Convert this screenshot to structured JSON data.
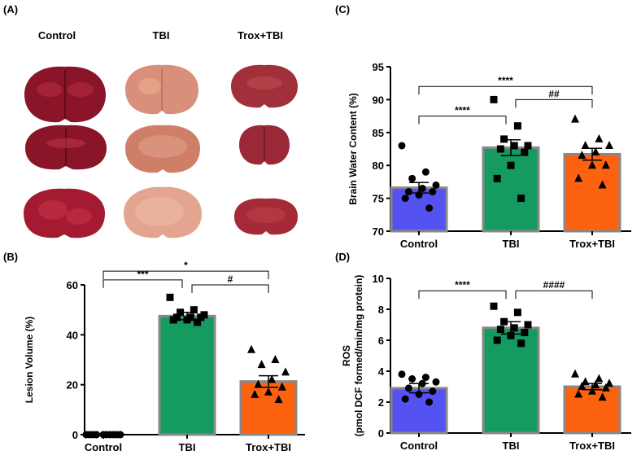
{
  "panels": {
    "a": {
      "label": "(A)",
      "group_labels": [
        "Control",
        "TBI",
        "Trox+TBI"
      ]
    },
    "b": {
      "label": "(B)"
    },
    "c": {
      "label": "(C)"
    },
    "d": {
      "label": "(D)"
    }
  },
  "colors": {
    "control": "#5552f2",
    "tbi": "#159a5f",
    "trox": "#fd6210",
    "bar_edge": "#888888",
    "brain_control": "#8a1428",
    "brain_tbi": "#d9907a",
    "brain_trox": "#a2303a"
  },
  "chart_data": [
    {
      "panel": "B",
      "type": "bar",
      "title": "",
      "xlabel": "",
      "ylabel": "Lesion Volume (%)",
      "categories": [
        "Control",
        "TBI",
        "Trox+TBI"
      ],
      "values": [
        0,
        47.5,
        21.3
      ],
      "sem": [
        0,
        1.5,
        2.3
      ],
      "ylim": [
        0,
        60
      ],
      "yticks": [
        "0",
        "20",
        "40",
        "60"
      ],
      "points": [
        [
          0,
          0,
          0,
          0,
          0,
          0,
          0,
          0,
          0,
          0
        ],
        [
          55,
          50,
          49,
          48,
          47,
          47,
          47,
          46,
          46,
          45
        ],
        [
          34,
          30,
          28,
          25,
          22,
          20,
          19,
          17,
          16,
          14
        ]
      ],
      "brackets": [
        {
          "from": 0,
          "to": 1,
          "label": "***",
          "y": 62
        },
        {
          "from": 0,
          "to": 2,
          "label": "*",
          "y": 65.5
        },
        {
          "from": 1,
          "to": 2,
          "label": "#",
          "y": 60
        }
      ]
    },
    {
      "panel": "C",
      "type": "bar",
      "title": "",
      "xlabel": "",
      "ylabel": "Brain Water Content (%)",
      "categories": [
        "Control",
        "TBI",
        "Trox+TBI"
      ],
      "values": [
        76.6,
        82.7,
        81.7
      ],
      "sem": [
        0.8,
        1.2,
        0.9
      ],
      "ylim": [
        70,
        95
      ],
      "yticks": [
        "70",
        "75",
        "80",
        "85",
        "90",
        "95"
      ],
      "points": [
        [
          83,
          79,
          78,
          77,
          76.5,
          76,
          76,
          75.5,
          75,
          73.5
        ],
        [
          90,
          86,
          84,
          83,
          83,
          82.5,
          82,
          80,
          78,
          75
        ],
        [
          87,
          84,
          83,
          83,
          82,
          81.5,
          80,
          80,
          78,
          77
        ]
      ],
      "brackets": [
        {
          "from": 0,
          "to": 1,
          "label": "****",
          "y": 87.5
        },
        {
          "from": 0,
          "to": 2,
          "label": "****",
          "y": 92
        },
        {
          "from": 1,
          "to": 2,
          "label": "##",
          "y": 90
        }
      ]
    },
    {
      "panel": "D",
      "type": "bar",
      "title": "",
      "xlabel": "",
      "ylabel_lines": [
        "ROS",
        "(pmol DCF formed/min/mg protein)"
      ],
      "categories": [
        "Control",
        "TBI",
        "Trox+TBI"
      ],
      "values": [
        2.9,
        6.8,
        3.0
      ],
      "sem": [
        0.3,
        0.4,
        0.2
      ],
      "ylim": [
        0,
        10
      ],
      "yticks": [
        "0",
        "2",
        "4",
        "6",
        "8",
        "10"
      ],
      "points": [
        [
          3.8,
          3.6,
          3.5,
          3.3,
          3.2,
          2.9,
          2.7,
          2.5,
          2.2,
          2.0
        ],
        [
          8.2,
          7.8,
          7.2,
          7.0,
          6.8,
          6.7,
          6.5,
          6.3,
          6.0,
          5.8
        ],
        [
          3.8,
          3.5,
          3.3,
          3.2,
          3.1,
          3.0,
          2.9,
          2.7,
          2.5,
          2.3
        ]
      ],
      "brackets": [
        {
          "from": 0,
          "to": 1,
          "label": "****",
          "y": 9.2
        },
        {
          "from": 1,
          "to": 2,
          "label": "####",
          "y": 9.2
        }
      ]
    }
  ]
}
